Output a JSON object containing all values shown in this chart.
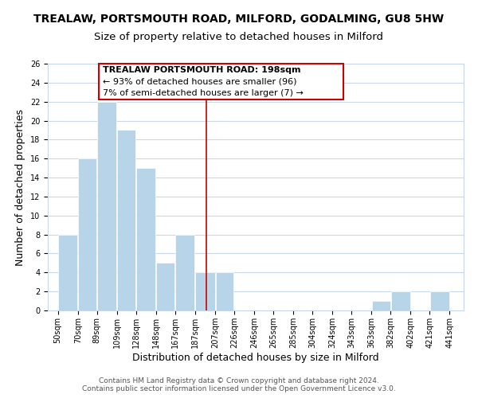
{
  "title": "TREALAW, PORTSMOUTH ROAD, MILFORD, GODALMING, GU8 5HW",
  "subtitle": "Size of property relative to detached houses in Milford",
  "xlabel": "Distribution of detached houses by size in Milford",
  "ylabel": "Number of detached properties",
  "bar_values": [
    8,
    16,
    22,
    19,
    15,
    5,
    8,
    4,
    4,
    0,
    0,
    0,
    0,
    0,
    0,
    0,
    1,
    2,
    0,
    2
  ],
  "bar_left_edges": [
    50,
    70,
    89,
    109,
    128,
    148,
    167,
    187,
    207,
    226,
    246,
    265,
    285,
    304,
    324,
    343,
    363,
    382,
    402,
    421
  ],
  "bar_widths": [
    20,
    19,
    20,
    19,
    20,
    19,
    20,
    20,
    19,
    20,
    19,
    20,
    19,
    20,
    19,
    20,
    19,
    20,
    19,
    20
  ],
  "xtick_labels": [
    "50sqm",
    "70sqm",
    "89sqm",
    "109sqm",
    "128sqm",
    "148sqm",
    "167sqm",
    "187sqm",
    "207sqm",
    "226sqm",
    "246sqm",
    "265sqm",
    "285sqm",
    "304sqm",
    "324sqm",
    "343sqm",
    "363sqm",
    "382sqm",
    "402sqm",
    "421sqm",
    "441sqm"
  ],
  "xtick_positions": [
    50,
    70,
    89,
    109,
    128,
    148,
    167,
    187,
    207,
    226,
    246,
    265,
    285,
    304,
    324,
    343,
    363,
    382,
    402,
    421,
    441
  ],
  "ylim": [
    0,
    26
  ],
  "xlim": [
    40,
    455
  ],
  "bar_color": "#b8d4e8",
  "bar_edge_color": "#ffffff",
  "red_line_x": 198,
  "annotation_title": "TREALAW PORTSMOUTH ROAD: 198sqm",
  "annotation_line1": "← 93% of detached houses are smaller (96)",
  "annotation_line2": "7% of semi-detached houses are larger (7) →",
  "annotation_box_color": "#ffffff",
  "annotation_box_edge": "#cc0000",
  "footer1": "Contains HM Land Registry data © Crown copyright and database right 2024.",
  "footer2": "Contains public sector information licensed under the Open Government Licence v3.0.",
  "background_color": "#ffffff",
  "grid_color": "#c8d8e8",
  "title_fontsize": 10,
  "subtitle_fontsize": 9.5,
  "axis_label_fontsize": 9,
  "tick_fontsize": 7,
  "footer_fontsize": 6.5,
  "annotation_title_fontsize": 8,
  "annotation_text_fontsize": 8
}
